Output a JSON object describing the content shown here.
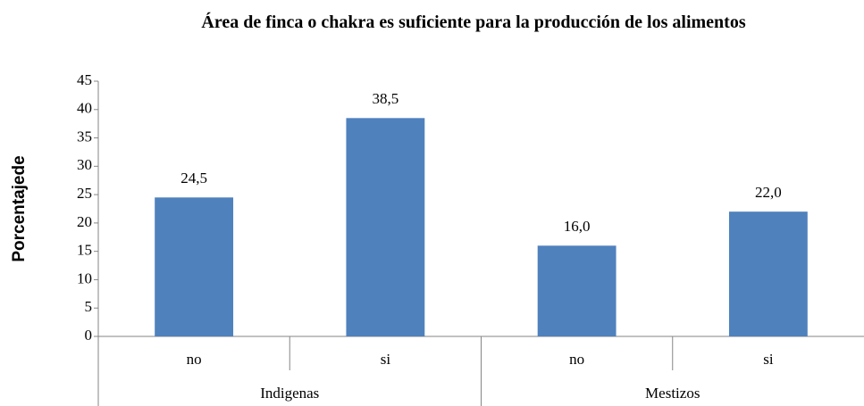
{
  "chart_data": {
    "type": "bar",
    "title": "Área de finca o chakra es suficiente para la producción de los alimentos",
    "y_label": "Porcentajede",
    "groups": [
      "Indigenas",
      "Mestizos"
    ],
    "categories": [
      "no",
      "si",
      "no",
      "si"
    ],
    "values": [
      24.5,
      38.5,
      16.0,
      22.0
    ],
    "value_labels": [
      "24,5",
      "38,5",
      "16,0",
      "22,0"
    ],
    "color": "#4f81bd",
    "ylim": [
      0,
      45
    ],
    "yticks": [
      0,
      5,
      10,
      15,
      20,
      25,
      30,
      35,
      40,
      45
    ],
    "grid": false
  }
}
